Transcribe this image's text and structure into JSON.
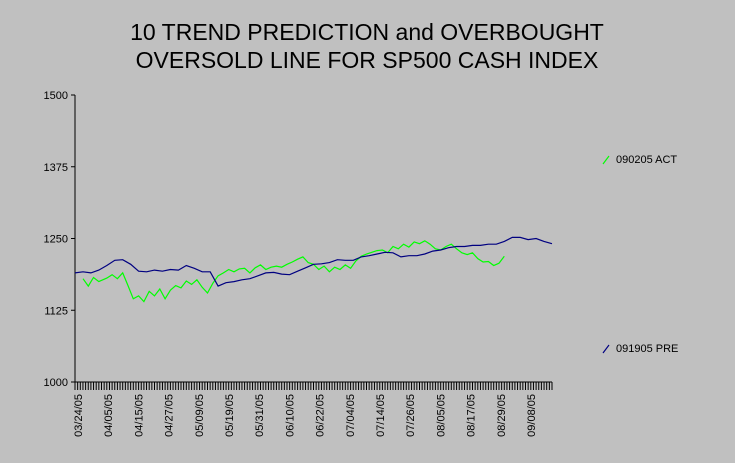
{
  "chart_data": {
    "type": "line",
    "title": [
      "10 TREND PREDICTION and OVERBOUGHT",
      "OVERSOLD LINE FOR SP500 CASH INDEX"
    ],
    "xlabel": "",
    "ylabel": "",
    "ylim": [
      1000,
      1500
    ],
    "y_ticks": [
      "1500",
      "1375",
      "1250",
      "1125",
      "1000"
    ],
    "y_tick_values": [
      1500,
      1375,
      1250,
      1125,
      1000
    ],
    "x_start": "2005-03-24",
    "x_end": "2005-09-20",
    "x_tick_labels": [
      "03/24/05",
      "04/05/05",
      "04/15/05",
      "04/27/05",
      "05/09/05",
      "05/19/05",
      "05/31/05",
      "06/10/05",
      "06/22/05",
      "07/04/05",
      "07/14/05",
      "07/26/05",
      "08/05/05",
      "08/17/05",
      "08/29/05",
      "09/08/05"
    ],
    "legend_placement": "right",
    "series": [
      {
        "name": "090205 ACT",
        "color": "#00ff00",
        "points": [
          [
            "2005-03-27",
            1180
          ],
          [
            "2005-03-29",
            1167
          ],
          [
            "2005-03-31",
            1182
          ],
          [
            "2005-04-02",
            1175
          ],
          [
            "2005-04-05",
            1181
          ],
          [
            "2005-04-07",
            1187
          ],
          [
            "2005-04-09",
            1180
          ],
          [
            "2005-04-11",
            1190
          ],
          [
            "2005-04-13",
            1168
          ],
          [
            "2005-04-15",
            1145
          ],
          [
            "2005-04-17",
            1150
          ],
          [
            "2005-04-19",
            1140
          ],
          [
            "2005-04-21",
            1158
          ],
          [
            "2005-04-23",
            1150
          ],
          [
            "2005-04-25",
            1162
          ],
          [
            "2005-04-27",
            1145
          ],
          [
            "2005-04-29",
            1160
          ],
          [
            "2005-05-01",
            1168
          ],
          [
            "2005-05-03",
            1164
          ],
          [
            "2005-05-05",
            1176
          ],
          [
            "2005-05-07",
            1170
          ],
          [
            "2005-05-09",
            1178
          ],
          [
            "2005-05-11",
            1165
          ],
          [
            "2005-05-13",
            1155
          ],
          [
            "2005-05-15",
            1172
          ],
          [
            "2005-05-17",
            1185
          ],
          [
            "2005-05-19",
            1190
          ],
          [
            "2005-05-21",
            1196
          ],
          [
            "2005-05-23",
            1192
          ],
          [
            "2005-05-25",
            1197
          ],
          [
            "2005-05-27",
            1198
          ],
          [
            "2005-05-29",
            1190
          ],
          [
            "2005-05-31",
            1199
          ],
          [
            "2005-06-02",
            1204
          ],
          [
            "2005-06-04",
            1196
          ],
          [
            "2005-06-06",
            1200
          ],
          [
            "2005-06-08",
            1202
          ],
          [
            "2005-06-10",
            1200
          ],
          [
            "2005-06-12",
            1205
          ],
          [
            "2005-06-14",
            1209
          ],
          [
            "2005-06-16",
            1214
          ],
          [
            "2005-06-18",
            1218
          ],
          [
            "2005-06-20",
            1208
          ],
          [
            "2005-06-22",
            1205
          ],
          [
            "2005-06-24",
            1196
          ],
          [
            "2005-06-26",
            1202
          ],
          [
            "2005-06-28",
            1192
          ],
          [
            "2005-06-30",
            1200
          ],
          [
            "2005-07-02",
            1196
          ],
          [
            "2005-07-04",
            1204
          ],
          [
            "2005-07-06",
            1198
          ],
          [
            "2005-07-08",
            1211
          ],
          [
            "2005-07-10",
            1219
          ],
          [
            "2005-07-12",
            1223
          ],
          [
            "2005-07-14",
            1226
          ],
          [
            "2005-07-16",
            1229
          ],
          [
            "2005-07-18",
            1230
          ],
          [
            "2005-07-20",
            1225
          ],
          [
            "2005-07-22",
            1236
          ],
          [
            "2005-07-24",
            1232
          ],
          [
            "2005-07-26",
            1240
          ],
          [
            "2005-07-28",
            1235
          ],
          [
            "2005-07-30",
            1244
          ],
          [
            "2005-08-01",
            1241
          ],
          [
            "2005-08-03",
            1246
          ],
          [
            "2005-08-05",
            1240
          ],
          [
            "2005-08-07",
            1232
          ],
          [
            "2005-08-09",
            1230
          ],
          [
            "2005-08-11",
            1236
          ],
          [
            "2005-08-13",
            1240
          ],
          [
            "2005-08-15",
            1232
          ],
          [
            "2005-08-17",
            1225
          ],
          [
            "2005-08-19",
            1222
          ],
          [
            "2005-08-21",
            1225
          ],
          [
            "2005-08-23",
            1215
          ],
          [
            "2005-08-25",
            1209
          ],
          [
            "2005-08-27",
            1210
          ],
          [
            "2005-08-29",
            1203
          ],
          [
            "2005-08-31",
            1207
          ],
          [
            "2005-09-02",
            1219
          ]
        ]
      },
      {
        "name": "091905 PRE",
        "color": "#000080",
        "points": [
          [
            "2005-03-24",
            1190
          ],
          [
            "2005-03-27",
            1192
          ],
          [
            "2005-03-30",
            1190
          ],
          [
            "2005-04-02",
            1195
          ],
          [
            "2005-04-05",
            1203
          ],
          [
            "2005-04-08",
            1212
          ],
          [
            "2005-04-11",
            1213
          ],
          [
            "2005-04-14",
            1205
          ],
          [
            "2005-04-17",
            1193
          ],
          [
            "2005-04-20",
            1192
          ],
          [
            "2005-04-23",
            1195
          ],
          [
            "2005-04-26",
            1193
          ],
          [
            "2005-04-29",
            1196
          ],
          [
            "2005-05-02",
            1195
          ],
          [
            "2005-05-05",
            1203
          ],
          [
            "2005-05-08",
            1198
          ],
          [
            "2005-05-11",
            1192
          ],
          [
            "2005-05-14",
            1192
          ],
          [
            "2005-05-17",
            1167
          ],
          [
            "2005-05-20",
            1173
          ],
          [
            "2005-05-23",
            1175
          ],
          [
            "2005-05-26",
            1178
          ],
          [
            "2005-05-29",
            1180
          ],
          [
            "2005-06-01",
            1185
          ],
          [
            "2005-06-04",
            1190
          ],
          [
            "2005-06-07",
            1191
          ],
          [
            "2005-06-10",
            1188
          ],
          [
            "2005-06-13",
            1187
          ],
          [
            "2005-06-16",
            1193
          ],
          [
            "2005-06-19",
            1199
          ],
          [
            "2005-06-22",
            1205
          ],
          [
            "2005-06-25",
            1206
          ],
          [
            "2005-06-28",
            1208
          ],
          [
            "2005-07-01",
            1213
          ],
          [
            "2005-07-04",
            1212
          ],
          [
            "2005-07-07",
            1212
          ],
          [
            "2005-07-10",
            1218
          ],
          [
            "2005-07-13",
            1220
          ],
          [
            "2005-07-16",
            1223
          ],
          [
            "2005-07-19",
            1226
          ],
          [
            "2005-07-22",
            1225
          ],
          [
            "2005-07-25",
            1218
          ],
          [
            "2005-07-28",
            1220
          ],
          [
            "2005-07-31",
            1220
          ],
          [
            "2005-08-03",
            1223
          ],
          [
            "2005-08-06",
            1228
          ],
          [
            "2005-08-09",
            1230
          ],
          [
            "2005-08-12",
            1234
          ],
          [
            "2005-08-15",
            1236
          ],
          [
            "2005-08-18",
            1236
          ],
          [
            "2005-08-21",
            1238
          ],
          [
            "2005-08-24",
            1238
          ],
          [
            "2005-08-27",
            1240
          ],
          [
            "2005-08-30",
            1240
          ],
          [
            "2005-09-02",
            1245
          ],
          [
            "2005-09-05",
            1252
          ],
          [
            "2005-09-08",
            1252
          ],
          [
            "2005-09-11",
            1248
          ],
          [
            "2005-09-14",
            1250
          ],
          [
            "2005-09-17",
            1245
          ],
          [
            "2005-09-20",
            1241
          ]
        ]
      }
    ]
  }
}
